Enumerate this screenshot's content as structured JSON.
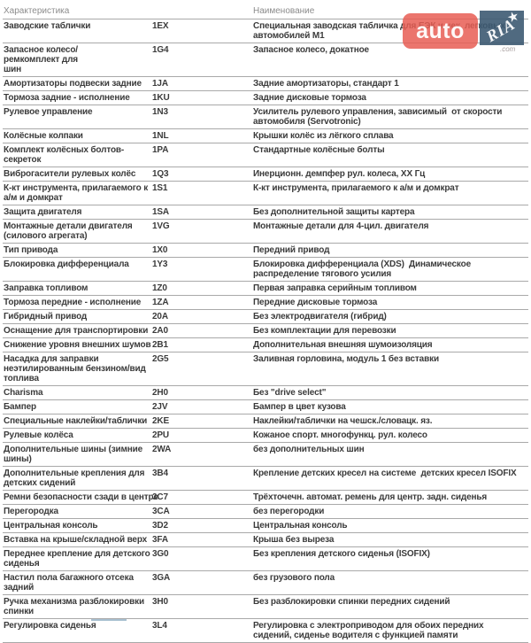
{
  "watermark": {
    "auto_label": "auto",
    "ria_label": "RIA",
    "com_label": ".com",
    "red_color": "rgba(232,93,83,0.85)",
    "blue_color": "rgba(61,90,114,0.9)"
  },
  "table": {
    "headers": {
      "characteristic": "Характеристика",
      "name": "Наименование"
    },
    "rows": [
      {
        "characteristic": "Заводские таблички",
        "code": "1EX",
        "name": "Специальная заводская табличка для ЕЭК и нек. легковых\nавтомобилей М1"
      },
      {
        "characteristic": "Запасное колесо/ремкомплект для\nшин",
        "code": "1G4",
        "name": "Запасное колесо, докатное"
      },
      {
        "characteristic": "Амортизаторы подвески задние",
        "code": "1JA",
        "name": "Задние амортизаторы, стандарт 1"
      },
      {
        "characteristic": "Тормоза задние - исполнение",
        "code": "1KU",
        "name": "Задние дисковые тормоза"
      },
      {
        "characteristic": "Рулевое управление",
        "code": "1N3",
        "name": "Усилитель рулевого управления, зависимый  от скорости\nавтомобиля (Servotronic)"
      },
      {
        "characteristic": "Колёсные колпаки",
        "code": "1NL",
        "name": "Крышки колёс из лёгкого сплава"
      },
      {
        "characteristic": "Комплект колёсных болтов-секреток",
        "code": "1PA",
        "name": "Стандартные колёсные болты"
      },
      {
        "characteristic": "Виброгасители рулевых колёс",
        "code": "1Q3",
        "name": "Инерционн. демпфер рул. колеса, XX Гц"
      },
      {
        "characteristic": "К-кт инструмента, прилагаемого к\nа/м и домкрат",
        "code": "1S1",
        "name": "К-кт инструмента, прилагаемого к а/м и домкрат"
      },
      {
        "characteristic": "Защита двигателя",
        "code": "1SA",
        "name": "Без дополнительной защиты картера"
      },
      {
        "characteristic": "Монтажные детали двигателя\n(силового агрегата)",
        "code": "1VG",
        "name": "Монтажные детали для 4-цил. двигателя"
      },
      {
        "characteristic": "Тип привода",
        "code": "1X0",
        "name": "Передний привод"
      },
      {
        "characteristic": "Блокировка дифференциала",
        "code": "1Y3",
        "name": "Блокировка дифференциала (XDS)  Динамическое\nраспределение тягового усилия"
      },
      {
        "characteristic": "Заправка топливом",
        "code": "1Z0",
        "name": "Первая заправка серийным топливом"
      },
      {
        "characteristic": "Тормоза передние - исполнение",
        "code": "1ZA",
        "name": "Передние дисковые тормоза"
      },
      {
        "characteristic": "Гибридный привод",
        "code": "20A",
        "name": "Без электродвигателя (гибрид)"
      },
      {
        "characteristic": "Оснащение для транспортировки",
        "code": "2A0",
        "name": "Без комплектации для перевозки"
      },
      {
        "characteristic": "Снижение уровня внешних шумов",
        "code": "2B1",
        "name": "Дополнительная внешняя шумоизоляция"
      },
      {
        "characteristic": "Насадка для заправки\nнеэтилированным бензином/вид\nтоплива",
        "code": "2G5",
        "name": "Заливная горловина, модуль 1 без вставки"
      },
      {
        "characteristic": "Charisma",
        "code": "2H0",
        "name": "Без \"drive select\""
      },
      {
        "characteristic": "Бампер",
        "code": "2JV",
        "name": "Бампер в цвет кузова"
      },
      {
        "characteristic": "Специальные наклейки/таблички",
        "code": "2KE",
        "name": "Наклейки/таблички на чешск./словацк. яз."
      },
      {
        "characteristic": "Рулевые колёса",
        "code": "2PU",
        "name": "Кожаное спорт. многофункц. рул. колесо"
      },
      {
        "characteristic": "Дополнительные шины (зимние\nшины)",
        "code": "2WA",
        "name": "без дополнительных шин"
      },
      {
        "characteristic": "Дополнительные крепления для\nдетских сидений",
        "code": "3B4",
        "name": "Крепление детских кресел на системе  детских кресел ISOFIX"
      },
      {
        "characteristic": "Ремни безопасности сзади в центре",
        "code": "3C7",
        "name": "Трёхточечн. автомат. ремень для центр. задн. сиденья"
      },
      {
        "characteristic": "Перегородка",
        "code": "3CA",
        "name": "без перегородки"
      },
      {
        "characteristic": "Центральная консоль",
        "code": "3D2",
        "name": "Центральная консоль"
      },
      {
        "characteristic": "Вставка на крыше/складной верх",
        "code": "3FA",
        "name": "Крыша без выреза"
      },
      {
        "characteristic": "Переднее крепление для детского\nсиденья",
        "code": "3G0",
        "name": "Без крепления детского сиденья (ISOFIX)"
      },
      {
        "characteristic": "Настил пола багажного отсека\nзадний",
        "code": "3GA",
        "name": "без грузового пола"
      },
      {
        "characteristic": "Ручка механизма разблокировки\nспинки",
        "code": "3H0",
        "name": "Без разблокировки спинки передних сидений"
      },
      {
        "characteristic": "Регулировка сиденья",
        "code": "3L4",
        "name": "Регулировка с электроприводом для обоих передних\nсидений, сиденье водителя с функцией памяти"
      }
    ]
  }
}
